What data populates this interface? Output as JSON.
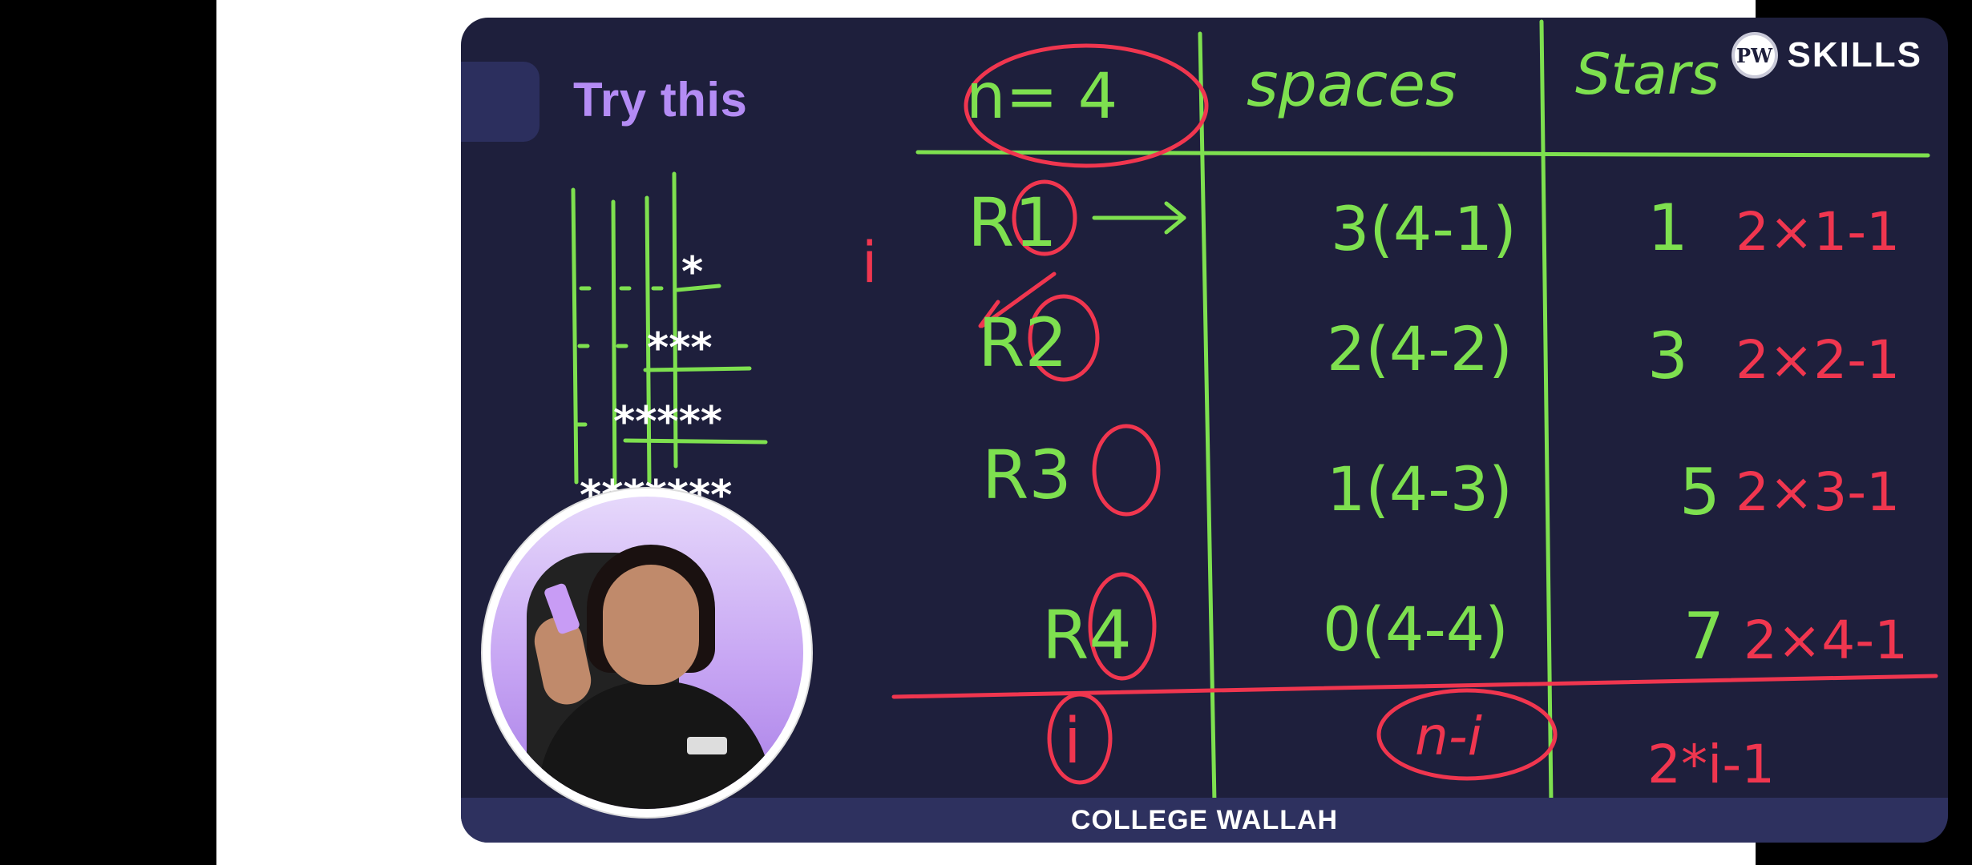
{
  "slide": {
    "title": "Try this",
    "logo_text": "SKILLS",
    "logo_mark": "PW",
    "footer": "COLLEGE WALLAH"
  },
  "board": {
    "n_label": "n= 4",
    "col_spaces": "spaces",
    "col_stars": "Stars",
    "i_label": "i",
    "rows": [
      {
        "row": "R1",
        "spaces": "3(4-1)",
        "stars_count": "1",
        "stars_formula": "2×1-1"
      },
      {
        "row": "R2",
        "spaces": "2(4-2)",
        "stars_count": "3",
        "stars_formula": "2×2-1"
      },
      {
        "row": "R3",
        "spaces": "1(4-3)",
        "stars_count": "5",
        "stars_formula": "2×3-1"
      },
      {
        "row": "R4",
        "spaces": "0(4-4)",
        "stars_count": "7",
        "stars_formula": "2×4-1"
      }
    ],
    "general": {
      "row": "i",
      "spaces": "n-i",
      "stars": "2*i-1"
    },
    "pattern": [
      "*",
      "***",
      "*****",
      "*******"
    ]
  },
  "colors": {
    "green": "#7ee04f",
    "red": "#f0364f",
    "bg": "#1e1f3c",
    "title": "#b48cf5"
  },
  "icons": [
    "pw-logo-icon",
    "webcam-presenter"
  ]
}
